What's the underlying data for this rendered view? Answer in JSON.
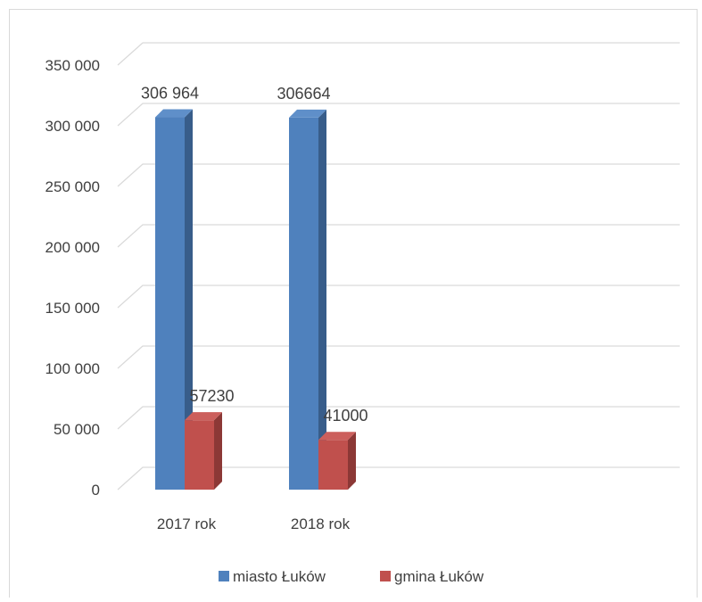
{
  "chart_data": {
    "type": "bar",
    "categories": [
      "2017 rok",
      "2018 rok"
    ],
    "series": [
      {
        "name": "miasto Łuków",
        "values": [
          306964,
          306664
        ],
        "labels": [
          "306 964",
          "306664"
        ],
        "color": "#4f81bd",
        "side_color": "#385d8a",
        "top_color": "#5f8fc9"
      },
      {
        "name": "gmina Łuków",
        "values": [
          57230,
          41000
        ],
        "labels": [
          "57230",
          "41000"
        ],
        "color": "#c0504d",
        "side_color": "#8c3836",
        "top_color": "#cc5f5c"
      }
    ],
    "ylim": [
      0,
      350000
    ],
    "yticks": [
      0,
      50000,
      100000,
      150000,
      200000,
      250000,
      300000,
      350000
    ],
    "ytick_labels": [
      "0",
      "50 000",
      "100 000",
      "150 000",
      "200 000",
      "250 000",
      "300 000",
      "350 000"
    ],
    "grid": true,
    "legend_position": "bottom",
    "title": "",
    "xlabel": "",
    "ylabel": ""
  }
}
